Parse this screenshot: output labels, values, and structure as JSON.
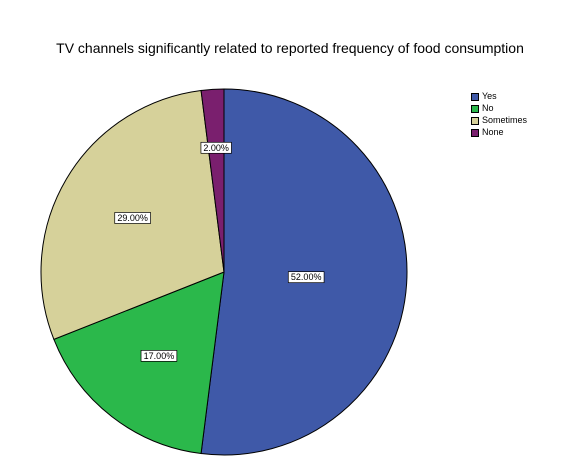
{
  "chart_data": {
    "type": "pie",
    "title": "TV channels significantly related to reported frequency of food consumption",
    "slices": [
      {
        "name": "Yes",
        "value": 52,
        "label": "52.00%",
        "color": "#3f59a8"
      },
      {
        "name": "No",
        "value": 17,
        "label": "17.00%",
        "color": "#2bb84b"
      },
      {
        "name": "Sometimes",
        "value": 29,
        "label": "29.00%",
        "color": "#d6d19a"
      },
      {
        "name": "None",
        "value": 2,
        "label": "2.00%",
        "color": "#7a1f6e"
      }
    ],
    "legend_position": "top-right"
  }
}
